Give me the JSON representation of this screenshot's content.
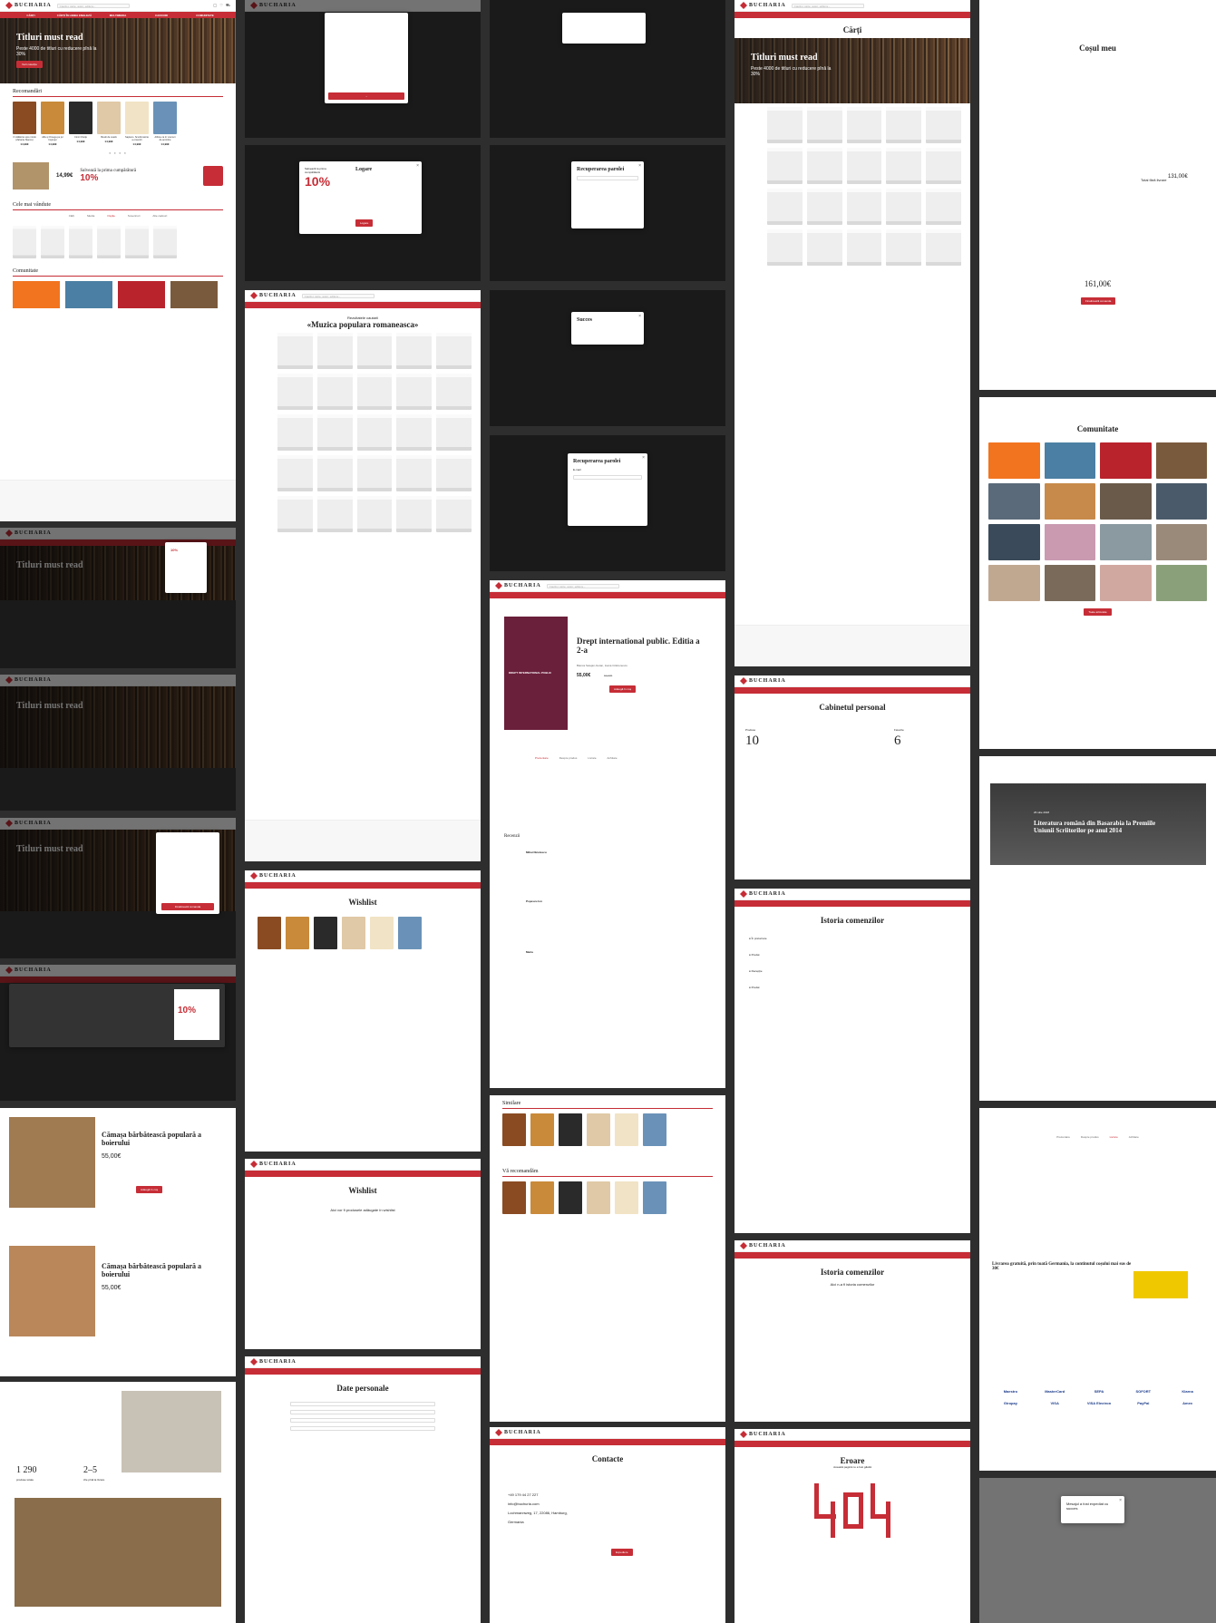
{
  "brand": {
    "name": "BUCHARIA",
    "accent": "#c62d36"
  },
  "header": {
    "search_placeholder": "Caută o carte, autor, editura...",
    "nav": [
      "CĂRȚI",
      "CĂRȚI ÎN LIMBA ENGLEZĂ",
      "MULTIMEDIA",
      "CADOURI",
      "COMUNITATE"
    ]
  },
  "hero": {
    "title": "Titluri must read",
    "subtitle": "Peste 4000 de titluri cu reducere pînă la 30%",
    "button": "Vezi colecția"
  },
  "home": {
    "recommended_title": "Recomandări",
    "bestsellers_title": "Cele mai vândute",
    "bestsellers_tabs": [
      "Cărți",
      "Media",
      "Ospiţe",
      "Suveniruri",
      "Alte cadouri"
    ],
    "community_title": "Comunitate",
    "promo_title": "Salvează la prima cumpărătură",
    "promo_percent": "10%",
    "promo_price": "14,99€",
    "books": [
      {
        "name": "O călătorie spre inimă (Zaharia Stancu)",
        "price": "14,99€",
        "color": "#8a4b22"
      },
      {
        "name": "Alfa și Omega pe jur împrejur",
        "price": "14,99€",
        "color": "#c98a3a"
      },
      {
        "name": "Cinci Cheiţe",
        "price": "14,99€",
        "color": "#2a2a2a"
      },
      {
        "name": "Bestii de ceară",
        "price": "14,99€",
        "color": "#e0c9a6"
      },
      {
        "name": "Sapiens. Scurtă istorie a omenirii",
        "price": "14,99€",
        "color": "#f1e3c5"
      },
      {
        "name": "Albine ca în vremuri de amintire",
        "price": "14,99€",
        "color": "#6a92b8"
      }
    ]
  },
  "login": {
    "title": "Logare",
    "promo": "Salvează la prima cumpărătură",
    "percent": "10%",
    "button": "Logare"
  },
  "recovery": {
    "title": "Recuperarea parolei",
    "success": "Succes",
    "email_label": "E-mail"
  },
  "search_results": {
    "label": "Rezultatele cautarii",
    "query": "«Muzica populara romaneasca»"
  },
  "books_page": {
    "title": "Cărți"
  },
  "product": {
    "title": "Drept international public. Editia a 2-a",
    "authors": "Bianca Selejan-Gutan, Ioana Crăciunescu",
    "price": "55,00€",
    "old_price": "67,00€",
    "add_button": "Adaugă în coș",
    "tabs": [
      "Prezentare",
      "Despre produs",
      "Livrare",
      "Achitare"
    ],
    "reviews_title": "Recenzii",
    "reviewers": [
      "Mihai Niculescu",
      "Popescu Ion",
      "Maria"
    ],
    "similar_title": "Similare",
    "recommend_title": "Vă recomandăm",
    "cover_text": "DREPT INTERNATIONAL PUBLIC"
  },
  "shirt": {
    "title": "Cămașa bărbătească populară a boierului",
    "price": "55,00€",
    "add_button": "Adaugă în coș"
  },
  "cart": {
    "title": "Coșul meu",
    "total_label": "Total fără livrare",
    "total": "131,00€",
    "grand_total": "161,00€",
    "checkout": "Finalizează comanda"
  },
  "community_page": {
    "title": "Comunitate",
    "more": "Toate articolele"
  },
  "article": {
    "date": "26 iulie 2018",
    "title": "Literatura română din Basarabia la Premiile Uniunii Scriitorilor pe anul 2014"
  },
  "cabinet": {
    "title": "Cabinetul personal",
    "orders_label": "Produse",
    "orders": "10",
    "wish_label": "Favorite",
    "wish": "6"
  },
  "orders": {
    "title": "Istoria comenzilor",
    "empty": "Aici n-a fi istoria comenzilor",
    "statuses": [
      "În prelucrare",
      "Predat",
      "Recepţie",
      "Predat"
    ]
  },
  "wishlist": {
    "title": "Wishlist",
    "empty": "Aici vor fi produsele adăugate în wishlist"
  },
  "personal": {
    "title": "Date personale"
  },
  "contacts": {
    "title": "Contacte",
    "phone": "+49 179 44 27 227",
    "email": "info@buchuria.com",
    "address": "Lochmannweg, 17, 22086, Hamburg, Germania",
    "button": "Expediere",
    "sent": "Mesajul a fost expediat cu succes"
  },
  "error": {
    "title": "Eroare",
    "subtitle": "Această pagină nu a fost găsită"
  },
  "delivery": {
    "title": "Livrarea gratuită, prin toată Germania, la continutul coșului mai sus de 30€",
    "tabs": [
      "Prezentare",
      "Despre produs",
      "Livrare",
      "Achitare"
    ]
  },
  "about": {
    "stat1": "1 290",
    "stat1_label": "produse totale",
    "stat2": "2–5",
    "stat2_label": "zile pînă la livrare"
  },
  "payment_methods": [
    "Maestro",
    "MasterCard",
    "SEPA",
    "SOFORT",
    "Klarna",
    "Giropay",
    "VISA",
    "VISA Electron",
    "PayPal",
    "Amex"
  ]
}
